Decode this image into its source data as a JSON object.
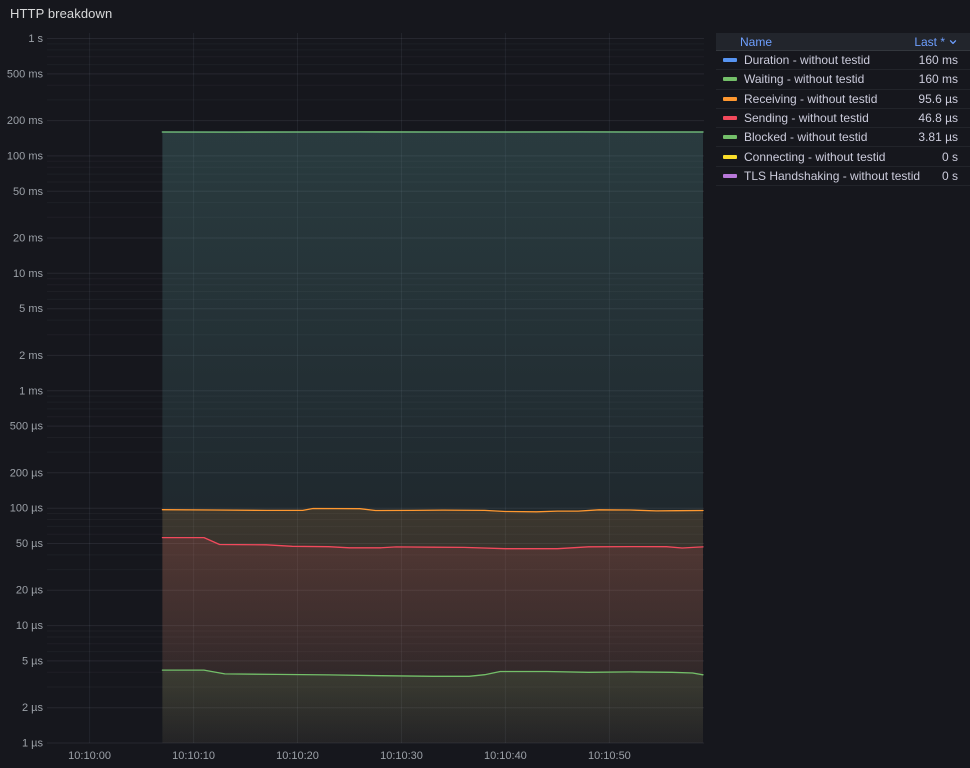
{
  "panel": {
    "title": "HTTP breakdown"
  },
  "legend": {
    "columns": {
      "name": "Name",
      "last": "Last *",
      "sort_icon": "chevron-down"
    },
    "rows": [
      {
        "label": "Duration - without testid",
        "value": "160 ms",
        "color": "#5794F2"
      },
      {
        "label": "Waiting - without testid",
        "value": "160 ms",
        "color": "#73BF69"
      },
      {
        "label": "Receiving - without testid",
        "value": "95.6 µs",
        "color": "#FF9830"
      },
      {
        "label": "Sending - without testid",
        "value": "46.8 µs",
        "color": "#F2495C"
      },
      {
        "label": "Blocked - without testid",
        "value": "3.81 µs",
        "color": "#73BF69"
      },
      {
        "label": "Connecting - without testid",
        "value": "0 s",
        "color": "#FADE2A"
      },
      {
        "label": "TLS Handshaking - without testid",
        "value": "0 s",
        "color": "#B877D9"
      }
    ]
  },
  "chart_data": {
    "type": "line",
    "title": "HTTP breakdown",
    "layout": {
      "legend_position": "top-right",
      "grid": true,
      "y_scale": "log10"
    },
    "x_axis": {
      "unit": "time of day (hh:mm:ss)",
      "domain_s": [
        -4.1,
        59.1
      ],
      "ticks": [
        {
          "label": "10:10:00",
          "t": 0
        },
        {
          "label": "10:10:10",
          "t": 10
        },
        {
          "label": "10:10:20",
          "t": 20
        },
        {
          "label": "10:10:30",
          "t": 30
        },
        {
          "label": "10:10:40",
          "t": 40
        },
        {
          "label": "10:10:50",
          "t": 50
        }
      ]
    },
    "y_axis": {
      "unit": "duration",
      "scale": "log",
      "domain_us": [
        1,
        1114000
      ],
      "ticks": [
        {
          "label": "1 s",
          "us": 1000000
        },
        {
          "label": "500 ms",
          "us": 500000
        },
        {
          "label": "200 ms",
          "us": 200000
        },
        {
          "label": "100 ms",
          "us": 100000
        },
        {
          "label": "50 ms",
          "us": 50000
        },
        {
          "label": "20 ms",
          "us": 20000
        },
        {
          "label": "10 ms",
          "us": 10000
        },
        {
          "label": "5 ms",
          "us": 5000
        },
        {
          "label": "2 ms",
          "us": 2000
        },
        {
          "label": "1 ms",
          "us": 1000
        },
        {
          "label": "500 µs",
          "us": 500
        },
        {
          "label": "200 µs",
          "us": 200
        },
        {
          "label": "100 µs",
          "us": 100
        },
        {
          "label": "50 µs",
          "us": 50
        },
        {
          "label": "20 µs",
          "us": 20
        },
        {
          "label": "10 µs",
          "us": 10
        },
        {
          "label": "5 µs",
          "us": 5
        },
        {
          "label": "2 µs",
          "us": 2
        },
        {
          "label": "1 µs",
          "us": 1
        }
      ]
    },
    "series": [
      {
        "name": "Duration - without testid",
        "color": "#5794F2",
        "last": "160 ms",
        "points_t_us": [
          [
            7,
            160000
          ],
          [
            59,
            160000
          ]
        ]
      },
      {
        "name": "Waiting - without testid",
        "color": "#73BF69",
        "last": "160 ms",
        "points_t_us": [
          [
            7,
            160000
          ],
          [
            14,
            159500
          ],
          [
            20,
            159800
          ],
          [
            26,
            160300
          ],
          [
            33,
            159700
          ],
          [
            40,
            160000
          ],
          [
            47,
            160200
          ],
          [
            53,
            159800
          ],
          [
            59,
            160000
          ]
        ]
      },
      {
        "name": "Receiving - without testid",
        "color": "#FF9830",
        "last": "95.6 µs",
        "points_t_us": [
          [
            7,
            97
          ],
          [
            12,
            96.5
          ],
          [
            17,
            95.8
          ],
          [
            20.5,
            95.8
          ],
          [
            21.5,
            99.3
          ],
          [
            26,
            99
          ],
          [
            27.5,
            95.5
          ],
          [
            31,
            95.8
          ],
          [
            34,
            96.3
          ],
          [
            38,
            95.8
          ],
          [
            40,
            93.6
          ],
          [
            43,
            93.2
          ],
          [
            45,
            94.4
          ],
          [
            47,
            94.4
          ],
          [
            49,
            96.8
          ],
          [
            52,
            96.4
          ],
          [
            54.5,
            94.8
          ],
          [
            56.5,
            95.2
          ],
          [
            59,
            95.6
          ]
        ]
      },
      {
        "name": "Sending - without testid",
        "color": "#F2495C",
        "last": "46.8 µs",
        "points_t_us": [
          [
            7,
            56.2
          ],
          [
            11,
            56.2
          ],
          [
            12.5,
            49
          ],
          [
            17,
            48.8
          ],
          [
            19.5,
            47.3
          ],
          [
            23,
            47
          ],
          [
            25,
            46
          ],
          [
            28,
            46
          ],
          [
            29.5,
            46.8
          ],
          [
            33,
            46.5
          ],
          [
            36,
            46.3
          ],
          [
            40,
            45.2
          ],
          [
            45,
            45.2
          ],
          [
            48,
            46.9
          ],
          [
            52,
            47.1
          ],
          [
            55.5,
            47
          ],
          [
            57,
            45.8
          ],
          [
            58.5,
            46.6
          ],
          [
            59,
            46.8
          ]
        ]
      },
      {
        "name": "Blocked - without testid",
        "color": "#73BF69",
        "last": "3.81 µs",
        "points_t_us": [
          [
            7,
            4.18
          ],
          [
            11,
            4.18
          ],
          [
            13,
            3.88
          ],
          [
            18,
            3.84
          ],
          [
            23,
            3.8
          ],
          [
            28,
            3.74
          ],
          [
            33,
            3.7
          ],
          [
            36.5,
            3.7
          ],
          [
            38,
            3.82
          ],
          [
            39.5,
            4.06
          ],
          [
            44,
            4.06
          ],
          [
            48,
            4.0
          ],
          [
            52,
            4.03
          ],
          [
            56,
            4.0
          ],
          [
            58,
            3.95
          ],
          [
            59,
            3.81
          ]
        ]
      },
      {
        "name": "Connecting - without testid",
        "color": "#FADE2A",
        "last": "0 s",
        "points_t_us": []
      },
      {
        "name": "TLS Handshaking - without testid",
        "color": "#B877D9",
        "last": "0 s",
        "points_t_us": []
      }
    ]
  }
}
